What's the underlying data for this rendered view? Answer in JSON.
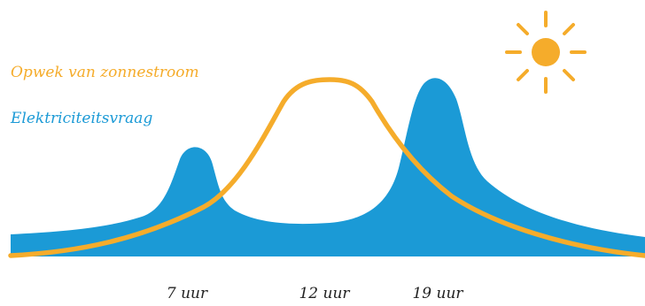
{
  "legend": {
    "solar_label": "Opwek van zonnestroom",
    "demand_label": "Elektriciteitsvraag"
  },
  "time_labels": [
    "7 uur",
    "12 uur",
    "19 uur"
  ],
  "colors": {
    "solar": "#f5ac2b",
    "demand": "#1b9ad6",
    "background": "#ffffff",
    "time_text": "#222222"
  },
  "icons": {
    "sun": "sun-icon"
  }
}
